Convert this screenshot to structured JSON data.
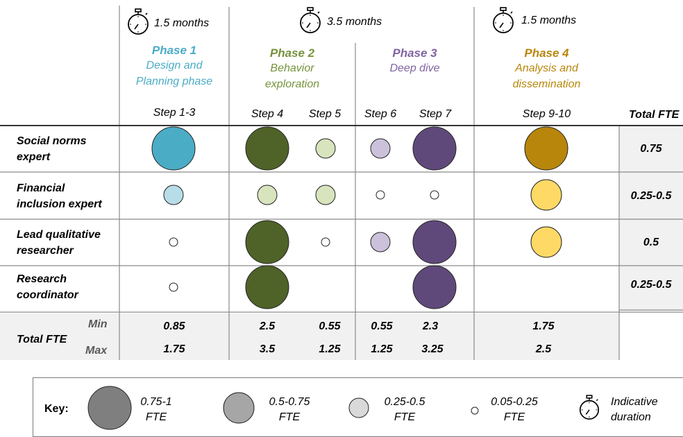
{
  "durations": [
    {
      "label": "1.5 months"
    },
    {
      "label": "3.5 months"
    },
    {
      "label": "1.5 months"
    }
  ],
  "phases": [
    {
      "title": "Phase 1",
      "subtitle_line1": "Design and",
      "subtitle_line2": "Planning phase",
      "color": "#4bacc6"
    },
    {
      "title": "Phase 2",
      "subtitle_line1": "Behavior",
      "subtitle_line2": "exploration",
      "color": "#76923c"
    },
    {
      "title": "Phase 3",
      "subtitle_line1": "Deep dive",
      "subtitle_line2": "",
      "color": "#8064a2"
    },
    {
      "title": "Phase 4",
      "subtitle_line1": "Analysis and",
      "subtitle_line2": "dissemination",
      "color": "#b8860b"
    }
  ],
  "steps": [
    "Step 1-3",
    "Step 4",
    "Step 5",
    "Step 6",
    "Step 7",
    "Step 9-10"
  ],
  "total_fte_header": "Total FTE",
  "roles": [
    {
      "line1": "Social norms",
      "line2": "expert",
      "total": "0.75",
      "bubbles": [
        "large",
        "large",
        "small",
        "small",
        "large",
        "large"
      ]
    },
    {
      "line1": "Financial",
      "line2": "inclusion expert",
      "total": "0.25-0.5",
      "bubbles": [
        "small",
        "small",
        "small",
        "tiny",
        "tiny",
        "medium"
      ]
    },
    {
      "line1": "Lead qualitative",
      "line2": "researcher",
      "total": "0.5",
      "bubbles": [
        "tiny",
        "large",
        "tiny",
        "small",
        "large",
        "medium"
      ]
    },
    {
      "line1": "Research",
      "line2": "coordinator",
      "total": "0.25-0.5",
      "bubbles": [
        "tiny",
        "large",
        "none",
        "none",
        "large",
        "none"
      ]
    }
  ],
  "bubble_colors": [
    {
      "large": "#4bacc6",
      "medium": "#4bacc6",
      "small": "#b7dde8",
      "tiny": "#ffffff"
    },
    {
      "large": "#4f6228",
      "medium": "#4f6228",
      "small": "#d7e4bd",
      "tiny": "#ffffff"
    },
    {
      "large": "#4f6228",
      "medium": "#4f6228",
      "small": "#d7e4bd",
      "tiny": "#ffffff"
    },
    {
      "large": "#5f497a",
      "medium": "#5f497a",
      "small": "#ccc1da",
      "tiny": "#ffffff"
    },
    {
      "large": "#5f497a",
      "medium": "#5f497a",
      "small": "#ccc1da",
      "tiny": "#ffffff"
    },
    {
      "large": "#b8860b",
      "medium": "#ffd966",
      "small": "#ffd966",
      "tiny": "#ffffff"
    }
  ],
  "totals": {
    "label": "Total FTE",
    "min_label": "Min",
    "max_label": "Max",
    "min": [
      "0.85",
      "2.5",
      "0.55",
      "0.55",
      "2.3",
      "1.75"
    ],
    "max": [
      "1.75",
      "3.5",
      "1.25",
      "1.25",
      "3.25",
      "2.5"
    ]
  },
  "key": {
    "label": "Key:",
    "items": [
      {
        "range": "0.75-1",
        "unit": "FTE",
        "fill": "#7f7f7f"
      },
      {
        "range": "0.5-0.75",
        "unit": "FTE",
        "fill": "#a6a6a6"
      },
      {
        "range": "0.25-0.5",
        "unit": "FTE",
        "fill": "#d9d9d9"
      },
      {
        "range": "0.05-0.25",
        "unit": "FTE",
        "fill": "#ffffff"
      }
    ],
    "duration_line1": "Indicative",
    "duration_line2": "duration"
  }
}
